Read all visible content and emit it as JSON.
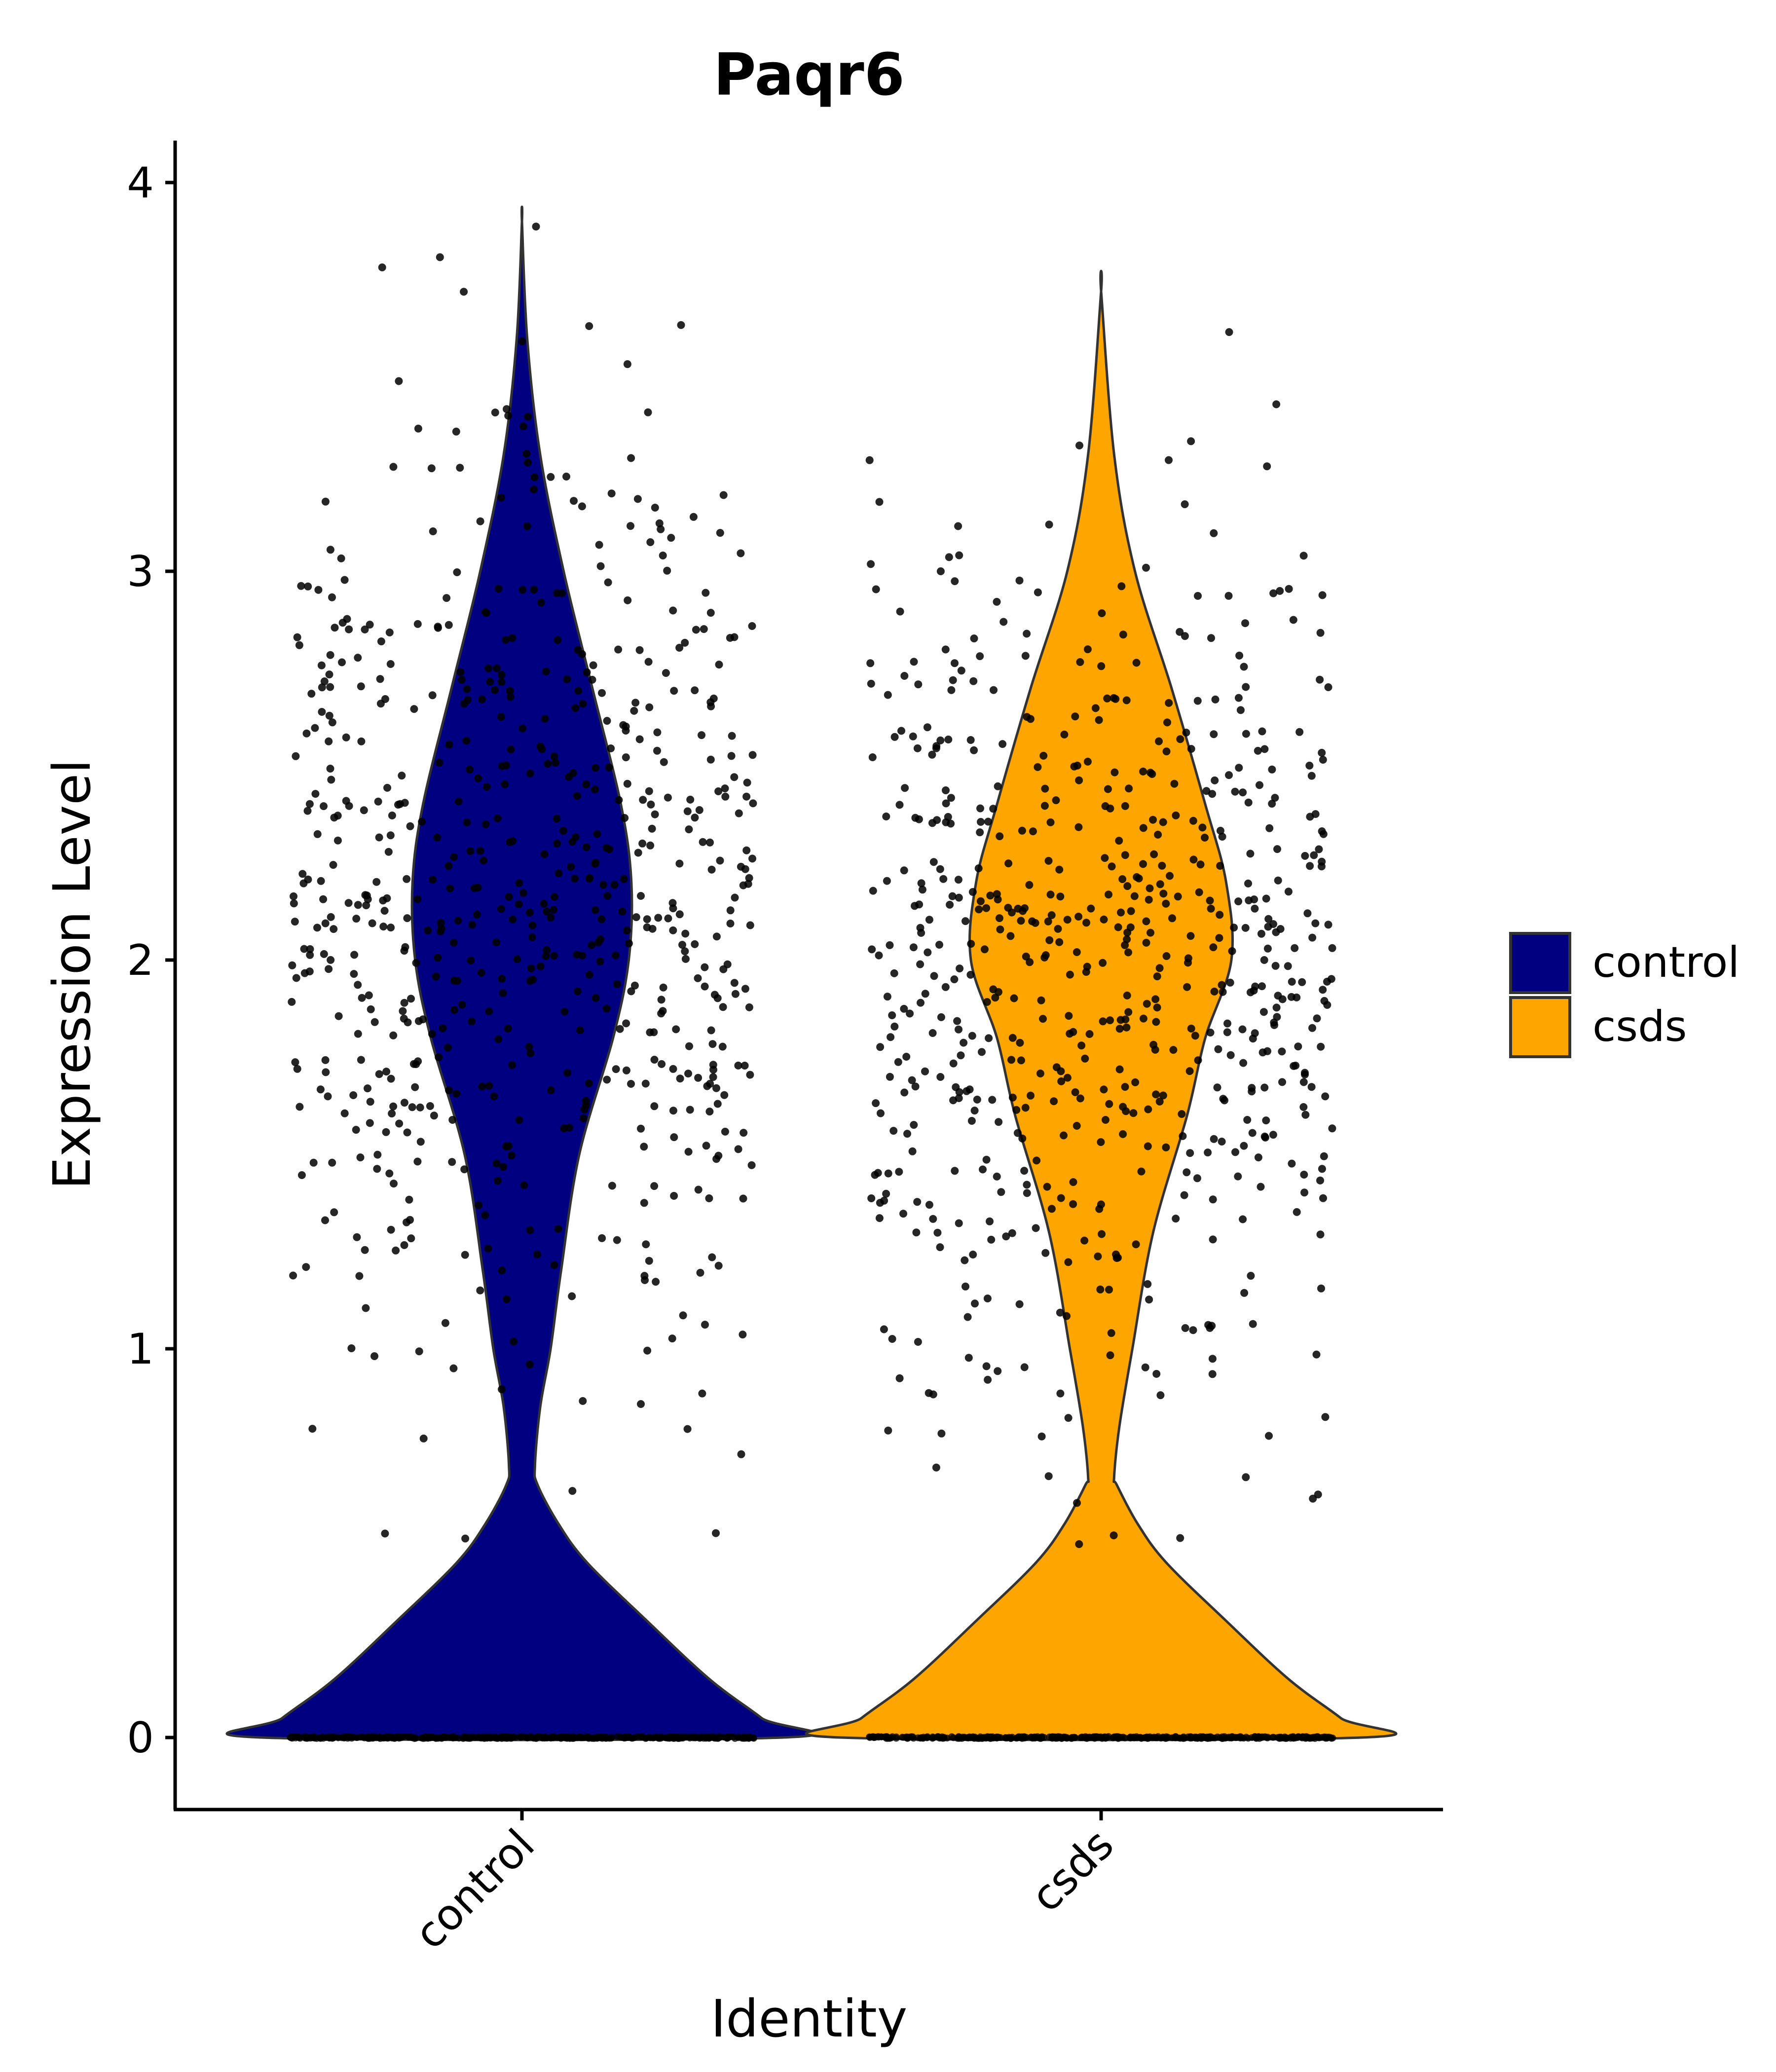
{
  "chart_data": {
    "type": "violin",
    "title": "Paqr6",
    "xlabel": "Identity",
    "ylabel": "Expression Level",
    "categories": [
      "control",
      "csds"
    ],
    "y_ticks": [
      "0",
      "1",
      "2",
      "3",
      "4"
    ],
    "ylim": [
      -0.19,
      4.11
    ],
    "colors": {
      "control": "#000080",
      "csds": "#FFA500"
    },
    "legend": {
      "position": "right",
      "entries": [
        {
          "label": "control",
          "color": "#000080"
        },
        {
          "label": "csds",
          "color": "#FFA500"
        }
      ]
    },
    "series": [
      {
        "name": "control",
        "max": 3.9,
        "neck_at": 0.7,
        "mode_upper": 2.2,
        "density_profile": [
          [
            0,
            1.0
          ],
          [
            0.05,
            0.92
          ],
          [
            0.15,
            0.72
          ],
          [
            0.3,
            0.48
          ],
          [
            0.45,
            0.25
          ],
          [
            0.55,
            0.14
          ],
          [
            0.65,
            0.06
          ],
          [
            0.7,
            0.05
          ],
          [
            0.85,
            0.07
          ],
          [
            1.0,
            0.11
          ],
          [
            1.2,
            0.15
          ],
          [
            1.5,
            0.22
          ],
          [
            1.8,
            0.35
          ],
          [
            2.0,
            0.41
          ],
          [
            2.2,
            0.42
          ],
          [
            2.4,
            0.38
          ],
          [
            2.7,
            0.27
          ],
          [
            3.0,
            0.16
          ],
          [
            3.3,
            0.07
          ],
          [
            3.6,
            0.02
          ],
          [
            3.9,
            0.0
          ]
        ],
        "n_zero": 430,
        "n_points_nonzero": 650,
        "points_mean": 2.15,
        "points_sd": 0.6
      },
      {
        "name": "csds",
        "max": 3.72,
        "neck_at": 0.67,
        "mode_upper": 2.0,
        "density_profile": [
          [
            0,
            1.0
          ],
          [
            0.05,
            0.92
          ],
          [
            0.15,
            0.72
          ],
          [
            0.3,
            0.48
          ],
          [
            0.45,
            0.25
          ],
          [
            0.55,
            0.14
          ],
          [
            0.65,
            0.06
          ],
          [
            0.67,
            0.05
          ],
          [
            0.8,
            0.07
          ],
          [
            1.0,
            0.12
          ],
          [
            1.3,
            0.2
          ],
          [
            1.6,
            0.33
          ],
          [
            1.8,
            0.4
          ],
          [
            2.0,
            0.5
          ],
          [
            2.2,
            0.48
          ],
          [
            2.4,
            0.4
          ],
          [
            2.7,
            0.27
          ],
          [
            3.0,
            0.13
          ],
          [
            3.3,
            0.05
          ],
          [
            3.72,
            0.0
          ]
        ],
        "n_zero": 430,
        "n_points_nonzero": 650,
        "points_mean": 2.0,
        "points_sd": 0.55
      }
    ]
  }
}
